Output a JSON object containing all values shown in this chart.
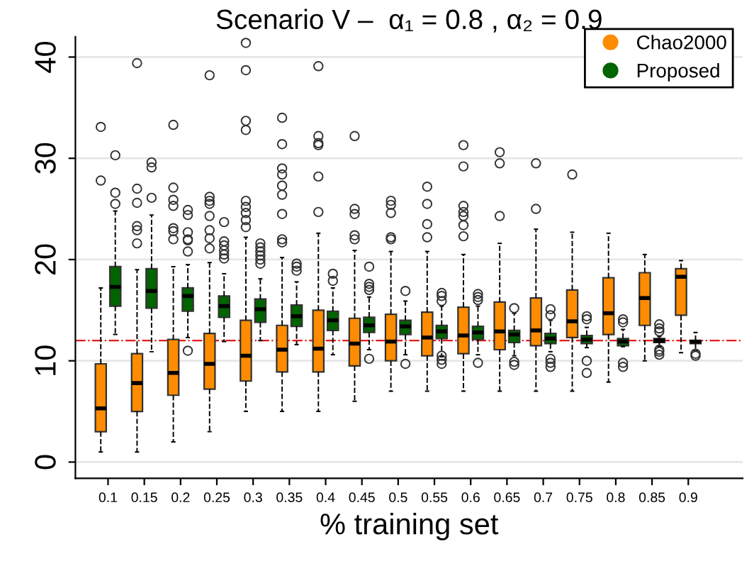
{
  "chart_data": {
    "type": "box",
    "title": "Scenario V –  α₁ = 0.8 , α₂ = 0.9",
    "xlabel": "% training set",
    "categories": [
      "0.1",
      "0.15",
      "0.2",
      "0.25",
      "0.3",
      "0.35",
      "0.4",
      "0.45",
      "0.5",
      "0.55",
      "0.6",
      "0.65",
      "0.7",
      "0.75",
      "0.8",
      "0.85",
      "0.9"
    ],
    "ylim": [
      -1.6,
      42
    ],
    "yticks": [
      0,
      10,
      20,
      30,
      40
    ],
    "grid": "y",
    "legend": "top right",
    "ref_lines": [
      {
        "axis": "y",
        "value": 12,
        "color": "#e41a1c",
        "line_style": "dashdot"
      }
    ],
    "series": [
      {
        "name": "Chao2000",
        "color": "#ff8c00",
        "boxes": [
          {
            "low": 1.0,
            "q1": 3.0,
            "median": 5.3,
            "q3": 9.7,
            "high": 17.2,
            "outliers": [
              27.8,
              33.1
            ]
          },
          {
            "low": 1.0,
            "q1": 5.0,
            "median": 7.8,
            "q3": 10.7,
            "high": 19.0,
            "outliers": [
              21.6,
              22.9,
              23.3,
              25.6,
              27.0,
              39.4
            ]
          },
          {
            "low": 2.0,
            "q1": 6.6,
            "median": 8.8,
            "q3": 12.1,
            "high": 19.3,
            "outliers": [
              22.0,
              22.8,
              23.1,
              25.3,
              25.9,
              27.1,
              33.3
            ]
          },
          {
            "low": 3.0,
            "q1": 7.2,
            "median": 9.7,
            "q3": 12.7,
            "high": 19.7,
            "outliers": [
              21.1,
              22.1,
              22.9,
              24.3,
              25.5,
              25.8,
              26.2,
              38.2
            ]
          },
          {
            "low": 5.0,
            "q1": 8.0,
            "median": 10.5,
            "q3": 14.0,
            "high": 22.2,
            "outliers": [
              23.2,
              23.9,
              24.6,
              25.2,
              25.8,
              32.8,
              33.7,
              38.7,
              41.4
            ]
          },
          {
            "low": 5.0,
            "q1": 8.9,
            "median": 11.1,
            "q3": 13.5,
            "high": 20.2,
            "outliers": [
              21.7,
              22.0,
              24.5,
              26.4,
              27.3,
              28.4,
              29.0,
              31.4,
              34.0
            ]
          },
          {
            "low": 5.0,
            "q1": 8.9,
            "median": 11.2,
            "q3": 15.0,
            "high": 22.6,
            "outliers": [
              24.7,
              28.2,
              31.3,
              31.5,
              32.2,
              39.1
            ]
          },
          {
            "low": 6.0,
            "q1": 9.5,
            "median": 11.7,
            "q3": 14.2,
            "high": 20.9,
            "outliers": [
              22.0,
              22.4,
              24.5,
              25.0,
              32.2
            ]
          },
          {
            "low": 7.0,
            "q1": 10.0,
            "median": 11.9,
            "q3": 14.6,
            "high": 20.8,
            "outliers": [
              22.0,
              22.2,
              24.6,
              25.4,
              25.8
            ]
          },
          {
            "low": 7.0,
            "q1": 10.5,
            "median": 12.3,
            "q3": 14.8,
            "high": 20.8,
            "outliers": [
              22.2,
              23.5,
              25.5,
              27.2
            ]
          },
          {
            "low": 7.0,
            "q1": 10.7,
            "median": 12.5,
            "q3": 15.3,
            "high": 20.5,
            "outliers": [
              22.3,
              23.4,
              24.3,
              24.7,
              25.3,
              29.2,
              31.3
            ]
          },
          {
            "low": 7.0,
            "q1": 11.1,
            "median": 12.9,
            "q3": 15.8,
            "high": 21.6,
            "outliers": [
              24.3,
              29.5,
              30.6
            ]
          },
          {
            "low": 7.0,
            "q1": 11.5,
            "median": 13.0,
            "q3": 16.2,
            "high": 23.0,
            "outliers": [
              25.0,
              29.5
            ]
          },
          {
            "low": 7.0,
            "q1": 12.3,
            "median": 13.9,
            "q3": 17.0,
            "high": 22.7,
            "outliers": [
              28.4
            ]
          },
          {
            "low": 7.9,
            "q1": 12.6,
            "median": 14.7,
            "q3": 18.2,
            "high": 22.6
          },
          {
            "low": 10.0,
            "q1": 13.5,
            "median": 16.2,
            "q3": 18.7,
            "high": 20.5
          },
          {
            "low": 10.8,
            "q1": 14.5,
            "median": 18.3,
            "q3": 19.1,
            "high": 19.9
          }
        ]
      },
      {
        "name": "Proposed",
        "color": "#006400",
        "boxes": [
          {
            "low": 12.6,
            "q1": 15.4,
            "median": 17.3,
            "q3": 19.3,
            "high": 24.8,
            "outliers": [
              25.5,
              26.6,
              30.3
            ]
          },
          {
            "low": 10.9,
            "q1": 15.2,
            "median": 16.9,
            "q3": 19.1,
            "high": 24.4,
            "outliers": [
              26.1,
              29.1,
              29.6
            ]
          },
          {
            "low": 12.3,
            "q1": 14.9,
            "median": 16.4,
            "q3": 17.2,
            "high": 19.5,
            "outliers": [
              11.0,
              20.8,
              21.9,
              22.0,
              22.7,
              24.4,
              24.9
            ]
          },
          {
            "low": 11.9,
            "q1": 14.3,
            "median": 15.4,
            "q3": 16.4,
            "high": 18.6,
            "outliers": [
              20.1,
              20.5,
              20.9,
              21.4,
              21.8,
              23.7
            ]
          },
          {
            "low": 12.0,
            "q1": 13.8,
            "median": 15.1,
            "q3": 16.1,
            "high": 18.1,
            "outliers": [
              19.6,
              20.0,
              20.4,
              20.8,
              21.2,
              21.6
            ]
          },
          {
            "low": 11.6,
            "q1": 13.4,
            "median": 14.4,
            "q3": 15.5,
            "high": 17.8,
            "outliers": [
              18.9,
              19.3,
              19.6
            ]
          },
          {
            "low": 10.6,
            "q1": 13.0,
            "median": 14.0,
            "q3": 14.9,
            "high": 17.2,
            "outliers": [
              17.9,
              18.6
            ]
          },
          {
            "low": 11.1,
            "q1": 12.8,
            "median": 13.5,
            "q3": 14.3,
            "high": 16.3,
            "outliers": [
              10.2,
              17.0,
              17.3,
              17.6,
              19.3
            ]
          },
          {
            "low": 10.6,
            "q1": 12.6,
            "median": 13.4,
            "q3": 14.0,
            "high": 15.9,
            "outliers": [
              9.7,
              16.9
            ]
          },
          {
            "low": 10.4,
            "q1": 12.2,
            "median": 12.9,
            "q3": 13.5,
            "high": 15.4,
            "outliers": [
              9.7,
              10.1,
              10.5,
              15.9,
              16.4,
              16.7
            ]
          },
          {
            "low": 10.6,
            "q1": 12.1,
            "median": 12.8,
            "q3": 13.4,
            "high": 15.4,
            "outliers": [
              9.8,
              16.0,
              16.3,
              16.6
            ]
          },
          {
            "low": 10.5,
            "q1": 11.8,
            "median": 12.6,
            "q3": 13.0,
            "high": 14.7,
            "outliers": [
              9.6,
              9.9,
              15.2
            ]
          },
          {
            "low": 10.9,
            "q1": 11.7,
            "median": 12.2,
            "q3": 12.7,
            "high": 14.0,
            "outliers": [
              9.4,
              9.8,
              10.2,
              14.5,
              15.1
            ]
          },
          {
            "low": 11.3,
            "q1": 11.7,
            "median": 12.1,
            "q3": 12.5,
            "high": 13.3,
            "outliers": [
              8.8,
              10.0,
              14.1,
              14.4
            ]
          },
          {
            "low": 11.4,
            "q1": 11.5,
            "median": 11.9,
            "q3": 12.2,
            "high": 13.1,
            "outliers": [
              9.4,
              9.8,
              13.8,
              14.1
            ]
          },
          {
            "low": 11.4,
            "q1": 11.8,
            "median": 12.0,
            "q3": 12.2,
            "high": 12.4,
            "outliers": [
              10.6,
              10.9,
              11.1,
              12.9,
              13.2,
              13.6
            ]
          },
          {
            "low": 11.0,
            "q1": 11.7,
            "median": 11.9,
            "q3": 12.0,
            "high": 12.8,
            "outliers": [
              10.5,
              10.7
            ]
          }
        ]
      }
    ]
  }
}
